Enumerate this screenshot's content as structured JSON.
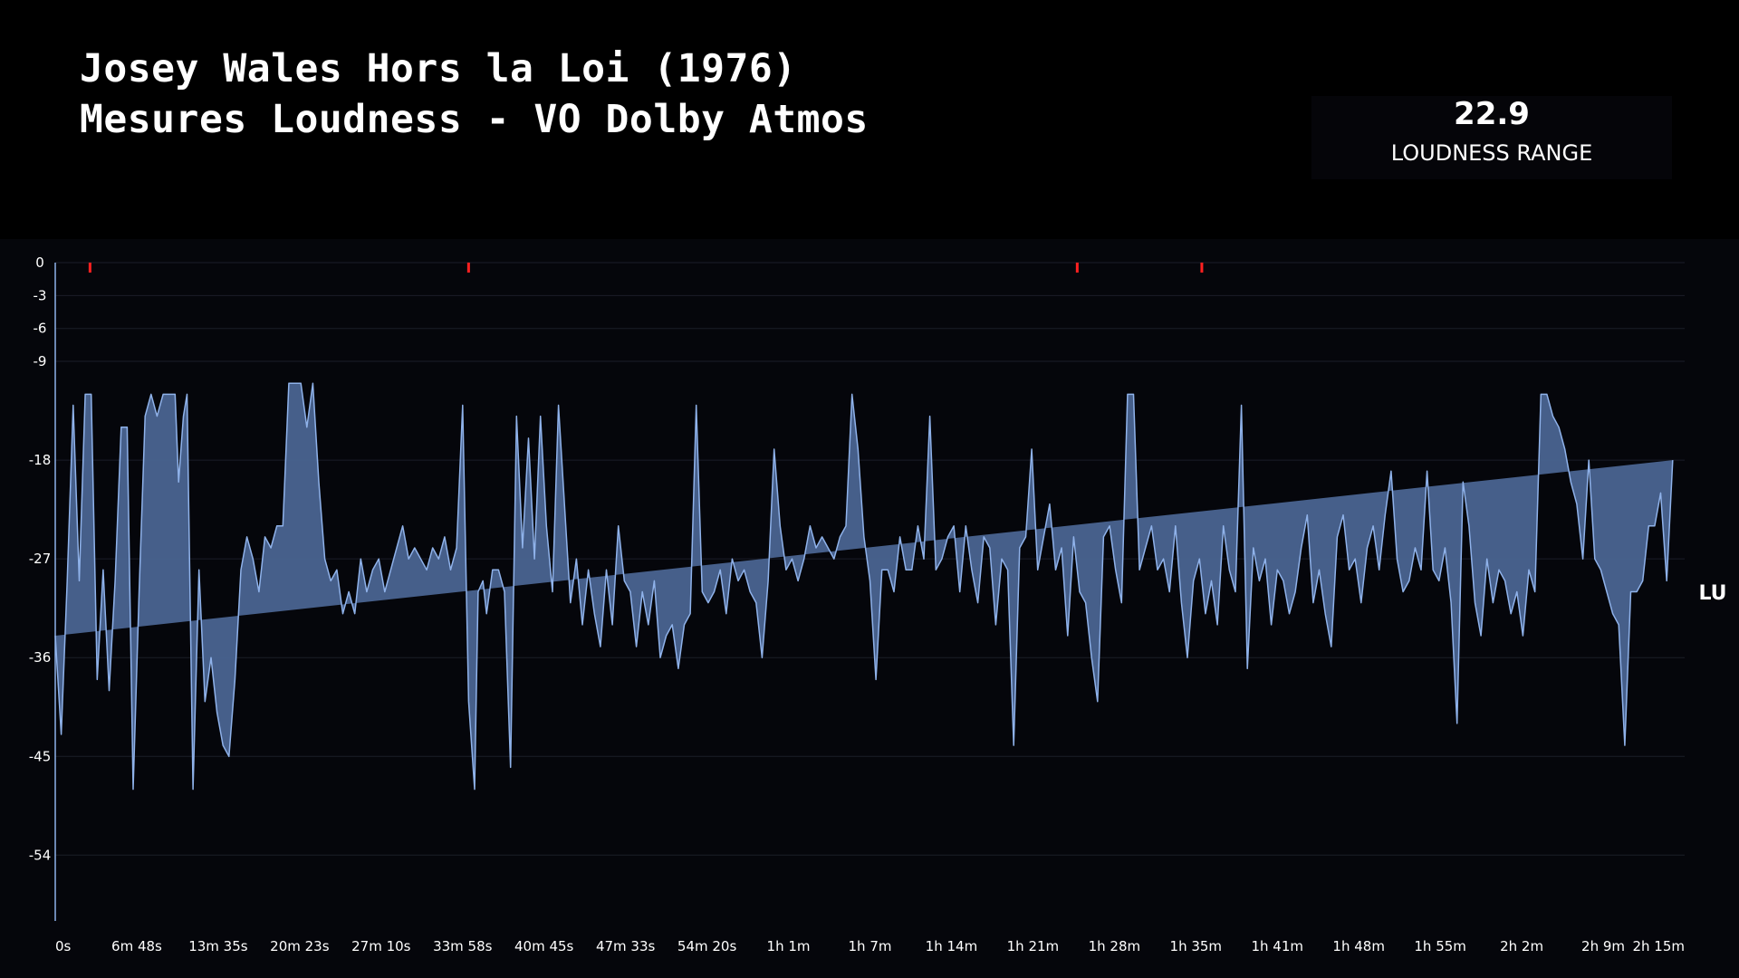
{
  "header": {
    "title_line1": "Josey Wales Hors la Loi (1976)",
    "title_line2": "Mesures Loudness - VO Dolby Atmos"
  },
  "stat": {
    "value": "22.9",
    "label": "LOUDNESS RANGE"
  },
  "colors": {
    "line": "#8fb2ea",
    "fill": "#4a6491",
    "peak_marker": "#ff2020",
    "zero_tick": "#f5d76e",
    "background": "#05060b"
  },
  "chart_data": {
    "type": "area",
    "unit_label": "LU",
    "ylim": [
      -60,
      0
    ],
    "y_ticks": [
      0,
      -3,
      -6,
      -9,
      -18,
      -27,
      -36,
      -45,
      -54
    ],
    "x_tick_labels": [
      "0s",
      "6m 48s",
      "13m 35s",
      "20m 23s",
      "27m 10s",
      "33m 58s",
      "40m 45s",
      "47m 33s",
      "54m 20s",
      "1h 1m",
      "1h 7m",
      "1h 14m",
      "1h 21m",
      "1h 28m",
      "1h 35m",
      "1h 41m",
      "1h 48m",
      "1h 55m",
      "2h 2m",
      "2h 9m",
      "2h 15m"
    ],
    "x_range_minutes": [
      0,
      136
    ],
    "peak_markers_minutes": [
      2.9,
      34.5,
      85.3,
      95.7
    ],
    "series": [
      {
        "t_minutes": [
          0,
          0.5,
          1.0,
          1.5,
          2.0,
          2.5,
          3.0,
          3.5,
          4.0,
          4.5,
          5.0,
          5.5,
          6.0,
          6.5,
          7.0,
          7.5,
          8.0,
          8.5,
          9.0,
          9.5,
          10.0,
          10.3,
          10.7,
          11.0,
          11.5,
          12.0,
          12.5,
          13.0,
          13.5,
          14.0,
          14.5,
          15.0,
          15.5,
          16.0,
          16.5,
          17.0,
          17.5,
          18.0,
          18.5,
          19.0,
          19.5,
          20.0,
          20.5,
          21.0,
          21.5,
          22.0,
          22.5,
          23.0,
          23.5,
          24.0,
          24.5,
          25.0,
          25.5,
          26.0,
          26.5,
          27.0,
          27.5,
          28.0,
          28.5,
          29.0,
          29.5,
          30.0,
          30.5,
          31.0,
          31.5,
          32.0,
          32.5,
          33.0,
          33.5,
          34.0,
          34.5,
          35.0,
          35.3,
          35.7,
          36.0,
          36.5,
          37.0,
          37.5,
          38.0,
          38.5,
          39.0,
          39.5,
          40.0,
          40.5,
          41.0,
          41.5,
          42.0,
          42.5,
          43.0,
          43.5,
          44.0,
          44.5,
          45.0,
          45.5,
          46.0,
          46.5,
          47.0,
          47.5,
          48.0,
          48.5,
          49.0,
          49.5,
          50.0,
          50.5,
          51.0,
          51.5,
          52.0,
          52.5,
          53.0,
          53.5,
          54.0,
          54.5,
          55.0,
          55.5,
          56.0,
          56.5,
          57.0,
          57.5,
          58.0,
          58.5,
          59.0,
          59.5,
          60.0,
          60.5,
          61.0,
          61.5,
          62.0,
          62.5,
          63.0,
          63.5,
          64.0,
          64.5,
          65.0,
          65.5,
          66.0,
          66.5,
          67.0,
          67.5,
          68.0,
          68.5,
          69.0,
          69.5,
          70.0,
          70.5,
          71.0,
          71.5,
          72.0,
          72.5,
          73.0,
          73.5,
          74.0,
          74.5,
          75.0,
          75.5,
          76.0,
          76.5,
          77.0,
          77.5,
          78.0,
          78.5,
          79.0,
          79.5,
          80.0,
          80.5,
          81.0,
          81.5,
          82.0,
          82.5,
          83.0,
          83.5,
          84.0,
          84.5,
          85.0,
          85.5,
          86.0,
          86.5,
          87.0,
          87.5,
          88.0,
          88.5,
          89.0,
          89.5,
          90.0,
          90.5,
          91.0,
          91.5,
          92.0,
          92.5,
          93.0,
          93.5,
          94.0,
          94.5,
          95.0,
          95.5,
          96.0,
          96.5,
          97.0,
          97.5,
          98.0,
          98.5,
          99.0,
          99.5,
          100.0,
          100.5,
          101.0,
          101.5,
          102.0,
          102.5,
          103.0,
          103.5,
          104.0,
          104.5,
          105.0,
          105.5,
          106.0,
          106.5,
          107.0,
          107.5,
          108.0,
          108.5,
          109.0,
          109.5,
          110.0,
          110.5,
          111.0,
          111.5,
          112.0,
          112.5,
          113.0,
          113.5,
          114.0,
          114.5,
          115.0,
          115.5,
          116.0,
          116.5,
          117.0,
          117.5,
          118.0,
          118.5,
          119.0,
          119.5,
          120.0,
          120.5,
          121.0,
          121.5,
          122.0,
          122.5,
          123.0,
          123.5,
          124.0,
          124.5,
          125.0,
          125.5,
          126.0,
          126.5,
          127.0,
          127.5,
          128.0,
          128.5,
          129.0,
          129.5,
          130.0,
          130.5,
          131.0,
          131.5,
          132.0,
          132.5,
          133.0,
          133.5,
          134.0,
          134.5,
          135.0,
          135.5,
          136.0
        ],
        "lu": [
          -34,
          -43,
          -29,
          -13,
          -29,
          -12,
          -12,
          -38,
          -28,
          -39,
          -29,
          -15,
          -15,
          -48,
          -30,
          -14,
          -12,
          -14,
          -12,
          -12,
          -12,
          -20,
          -14,
          -12,
          -48,
          -28,
          -40,
          -36,
          -41,
          -44,
          -45,
          -38,
          -28,
          -25,
          -27,
          -30,
          -25,
          -26,
          -24,
          -24,
          -11,
          -11,
          -11,
          -15,
          -11,
          -20,
          -27,
          -29,
          -28,
          -32,
          -30,
          -32,
          -27,
          -30,
          -28,
          -27,
          -30,
          -28,
          -26,
          -24,
          -27,
          -26,
          -27,
          -28,
          -26,
          -27,
          -25,
          -28,
          -26,
          -13,
          -40,
          -48,
          -30,
          -29,
          -32,
          -28,
          -28,
          -30,
          -46,
          -14,
          -26,
          -16,
          -27,
          -14,
          -24,
          -30,
          -13,
          -22,
          -31,
          -27,
          -33,
          -28,
          -32,
          -35,
          -28,
          -33,
          -24,
          -29,
          -30,
          -35,
          -30,
          -33,
          -29,
          -36,
          -34,
          -33,
          -37,
          -33,
          -32,
          -13,
          -30,
          -31,
          -30,
          -28,
          -32,
          -27,
          -29,
          -28,
          -30,
          -31,
          -36,
          -29,
          -17,
          -24,
          -28,
          -27,
          -29,
          -27,
          -24,
          -26,
          -25,
          -26,
          -27,
          -25,
          -24,
          -12,
          -17,
          -25,
          -29,
          -38,
          -28,
          -28,
          -30,
          -25,
          -28,
          -28,
          -24,
          -27,
          -14,
          -28,
          -27,
          -25,
          -24,
          -30,
          -24,
          -28,
          -31,
          -25,
          -26,
          -33,
          -27,
          -28,
          -44,
          -26,
          -25,
          -17,
          -28,
          -25,
          -22,
          -28,
          -26,
          -34,
          -25,
          -30,
          -31,
          -36,
          -40,
          -25,
          -24,
          -28,
          -31,
          -12,
          -12,
          -28,
          -26,
          -24,
          -28,
          -27,
          -30,
          -24,
          -31,
          -36,
          -29,
          -27,
          -32,
          -29,
          -33,
          -24,
          -28,
          -30,
          -13,
          -37,
          -26,
          -29,
          -27,
          -33,
          -28,
          -29,
          -32,
          -30,
          -26,
          -23,
          -31,
          -28,
          -32,
          -35,
          -25,
          -23,
          -28,
          -27,
          -31,
          -26,
          -24,
          -28,
          -23,
          -19,
          -27,
          -30,
          -29,
          -26,
          -28,
          -19,
          -28,
          -29,
          -26,
          -31,
          -42,
          -20,
          -24,
          -31,
          -34,
          -27,
          -31,
          -28,
          -29,
          -32,
          -30,
          -34,
          -28,
          -30,
          -12,
          -12,
          -14,
          -15,
          -17,
          -20,
          -22,
          -27,
          -18,
          -27,
          -28,
          -30,
          -32,
          -33,
          -44,
          -30,
          -30,
          -29,
          -24,
          -24,
          -21,
          -29,
          -18
        ]
      }
    ]
  }
}
